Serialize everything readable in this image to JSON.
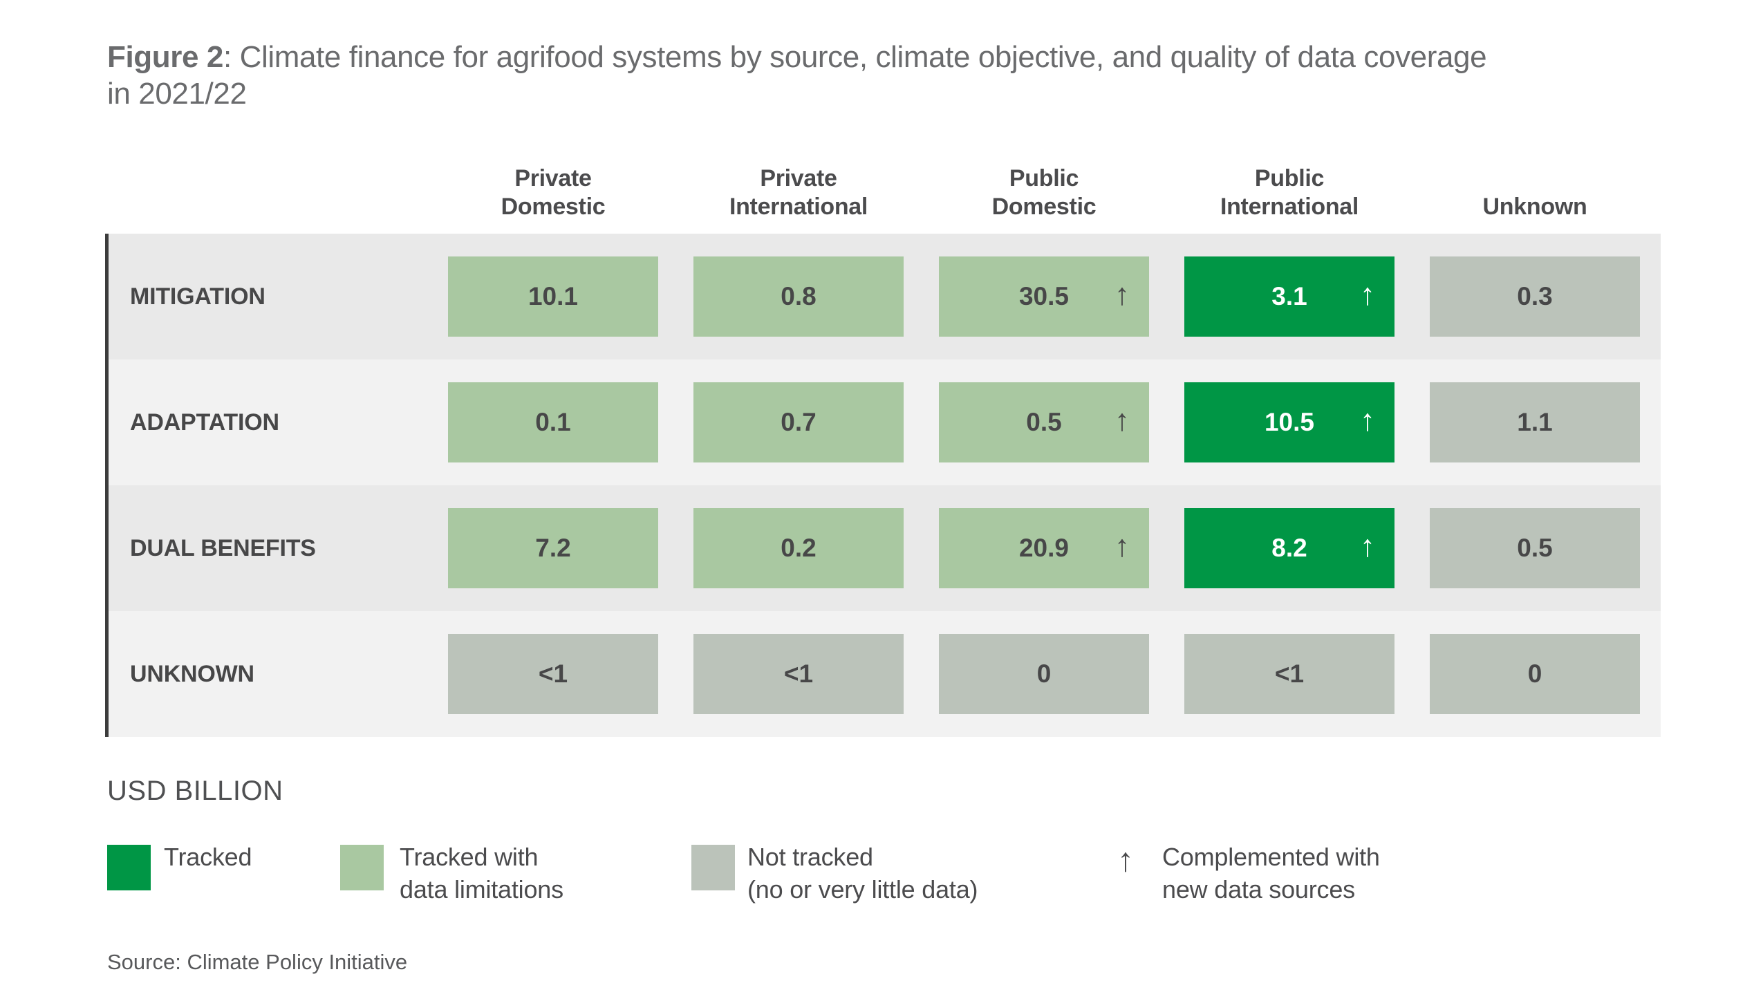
{
  "title": {
    "bold": "Figure 2",
    "line1_rest": ": Climate finance for agrifood systems by source, climate objective, and quality of data coverage",
    "line2": "in 2021/22"
  },
  "ui": {
    "column_lines": [
      {
        "line1": "Private",
        "line2": "Domestic"
      },
      {
        "line1": "Private",
        "line2": "International"
      },
      {
        "line1": "Public",
        "line2": "Domestic"
      },
      {
        "line1": "Public",
        "line2": "International"
      },
      {
        "line1": "",
        "line2": "Unknown"
      }
    ],
    "unit_label": "USD BILLION",
    "legend_items": [
      {
        "key": "tracked",
        "line1": "Tracked",
        "line2": ""
      },
      {
        "key": "limited",
        "line1": "Tracked with",
        "line2": "data limitations"
      },
      {
        "key": "not_tracked",
        "line1": "Not tracked",
        "line2": "(no or very little data)"
      },
      {
        "key": "new_data_sources",
        "line1": "Complemented with",
        "line2": "new data sources"
      }
    ],
    "source_note": "Source: Climate Policy Initiative"
  },
  "glyphs": {
    "arrow_up": "↑"
  },
  "colors": {
    "tracked_green": "#009645",
    "limited_green": "#a9c8a1",
    "not_tracked_gray": "#bbc3ba",
    "band_dark": "#e9e9e9",
    "band_light": "#f2f2f2",
    "text_dark": "#474748",
    "title_gray": "#6a6b6d"
  },
  "chart_data": {
    "type": "heatmap",
    "title": "Figure 2: Climate finance for agrifood systems by source, climate objective, and quality of data coverage in 2021/22",
    "unit": "USD BILLION",
    "columns": [
      "Private Domestic",
      "Private International",
      "Public Domestic",
      "Public International",
      "Unknown"
    ],
    "rows": [
      "MITIGATION",
      "ADAPTATION",
      "DUAL BENEFITS",
      "UNKNOWN"
    ],
    "values": [
      [
        "10.1",
        "0.8",
        "30.5",
        "3.1",
        "0.3"
      ],
      [
        "0.1",
        "0.7",
        "0.5",
        "10.5",
        "1.1"
      ],
      [
        "7.2",
        "0.2",
        "20.9",
        "8.2",
        "0.5"
      ],
      [
        "<1",
        "<1",
        "0",
        "<1",
        "0"
      ]
    ],
    "quality": [
      [
        "limited",
        "limited",
        "limited",
        "tracked",
        "not_tracked"
      ],
      [
        "limited",
        "limited",
        "limited",
        "tracked",
        "not_tracked"
      ],
      [
        "limited",
        "limited",
        "limited",
        "tracked",
        "not_tracked"
      ],
      [
        "not_tracked",
        "not_tracked",
        "not_tracked",
        "not_tracked",
        "not_tracked"
      ]
    ],
    "complemented_with_new_data_sources": [
      [
        false,
        false,
        true,
        true,
        false
      ],
      [
        false,
        false,
        true,
        true,
        false
      ],
      [
        false,
        false,
        true,
        true,
        false
      ],
      [
        false,
        false,
        false,
        false,
        false
      ]
    ],
    "legend": [
      "Tracked",
      "Tracked with data limitations",
      "Not tracked (no or very little data)",
      "Complemented with new data sources"
    ],
    "source": "Source: Climate Policy Initiative"
  }
}
